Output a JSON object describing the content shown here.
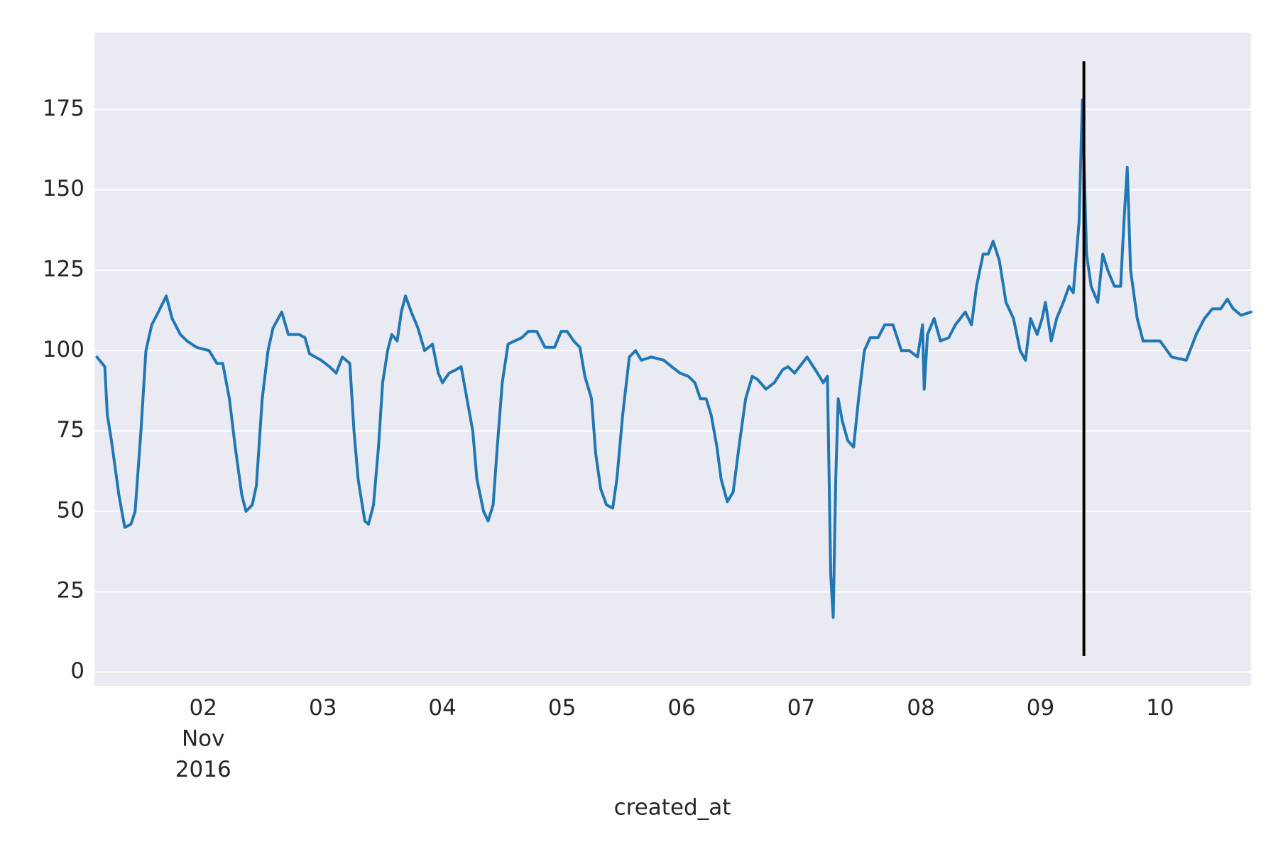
{
  "chart_data": {
    "type": "line",
    "xlabel": "created_at",
    "color": "#1f77b4",
    "grid": true,
    "xlim": [
      "2016-11-01T02:10",
      "2016-11-10T18:15"
    ],
    "ylim": [
      -4.3,
      198.9
    ],
    "yticks": [
      0,
      25,
      50,
      75,
      100,
      125,
      150,
      175
    ],
    "xticks": [
      {
        "value": "2016-11-02T00:00",
        "label": "02\nNov\n2016"
      },
      {
        "value": "2016-11-03T00:00",
        "label": "03"
      },
      {
        "value": "2016-11-04T00:00",
        "label": "04"
      },
      {
        "value": "2016-11-05T00:00",
        "label": "05"
      },
      {
        "value": "2016-11-06T00:00",
        "label": "06"
      },
      {
        "value": "2016-11-07T00:00",
        "label": "07"
      },
      {
        "value": "2016-11-08T00:00",
        "label": "08"
      },
      {
        "value": "2016-11-09T00:00",
        "label": "09"
      },
      {
        "value": "2016-11-10T00:00",
        "label": "10"
      }
    ],
    "vlines": [
      {
        "x": "2016-11-09T08:43",
        "ymin": 5,
        "ymax": 190,
        "color": "#000000"
      }
    ],
    "x": [
      "2016-11-01T02:40",
      "2016-11-01T04:15",
      "2016-11-01T04:45",
      "2016-11-01T05:35",
      "2016-11-01T07:05",
      "2016-11-01T08:15",
      "2016-11-01T09:30",
      "2016-11-01T10:20",
      "2016-11-01T11:30",
      "2016-11-01T12:30",
      "2016-11-01T13:40",
      "2016-11-01T15:00",
      "2016-11-01T16:35",
      "2016-11-01T17:45",
      "2016-11-01T19:25",
      "2016-11-01T20:45",
      "2016-11-01T22:40",
      "2016-11-02T01:10",
      "2016-11-02T02:45",
      "2016-11-02T03:55",
      "2016-11-02T05:15",
      "2016-11-02T06:25",
      "2016-11-02T07:45",
      "2016-11-02T08:35",
      "2016-11-02T09:50",
      "2016-11-02T10:40",
      "2016-11-02T11:50",
      "2016-11-02T13:00",
      "2016-11-02T14:00",
      "2016-11-02T15:45",
      "2016-11-02T17:05",
      "2016-11-02T19:15",
      "2016-11-02T20:25",
      "2016-11-02T21:20",
      "2016-11-02T23:40",
      "2016-11-03T01:20",
      "2016-11-03T02:40",
      "2016-11-03T03:55",
      "2016-11-03T05:25",
      "2016-11-03T06:15",
      "2016-11-03T07:05",
      "2016-11-03T08:25",
      "2016-11-03T09:10",
      "2016-11-03T10:10",
      "2016-11-03T11:10",
      "2016-11-03T12:00",
      "2016-11-03T13:00",
      "2016-11-03T13:50",
      "2016-11-03T14:55",
      "2016-11-03T15:45",
      "2016-11-03T16:35",
      "2016-11-03T17:45",
      "2016-11-03T19:05",
      "2016-11-03T20:25",
      "2016-11-03T22:00",
      "2016-11-03T23:10",
      "2016-11-04T00:00",
      "2016-11-04T01:20",
      "2016-11-04T02:40",
      "2016-11-04T03:45",
      "2016-11-04T04:55",
      "2016-11-04T06:05",
      "2016-11-04T06:55",
      "2016-11-04T08:15",
      "2016-11-04T09:10",
      "2016-11-04T10:10",
      "2016-11-04T11:00",
      "2016-11-04T12:00",
      "2016-11-04T13:10",
      "2016-11-04T14:30",
      "2016-11-04T15:55",
      "2016-11-04T17:15",
      "2016-11-04T18:55",
      "2016-11-04T20:35",
      "2016-11-04T22:30",
      "2016-11-04T23:50",
      "2016-11-05T01:00",
      "2016-11-05T02:20",
      "2016-11-05T03:35",
      "2016-11-05T04:35",
      "2016-11-05T05:55",
      "2016-11-05T06:45",
      "2016-11-05T07:45",
      "2016-11-05T08:55",
      "2016-11-05T10:10",
      "2016-11-05T11:00",
      "2016-11-05T12:10",
      "2016-11-05T13:30",
      "2016-11-05T14:45",
      "2016-11-05T15:55",
      "2016-11-05T17:55",
      "2016-11-05T20:25",
      "2016-11-05T22:00",
      "2016-11-05T23:40",
      "2016-11-06T01:20",
      "2016-11-06T02:40",
      "2016-11-06T03:45",
      "2016-11-06T04:55",
      "2016-11-06T05:55",
      "2016-11-06T07:05",
      "2016-11-06T07:55",
      "2016-11-06T09:10",
      "2016-11-06T10:20",
      "2016-11-06T11:30",
      "2016-11-06T12:50",
      "2016-11-06T14:10",
      "2016-11-06T15:15",
      "2016-11-06T16:55",
      "2016-11-06T18:35",
      "2016-11-06T20:15",
      "2016-11-06T21:20",
      "2016-11-06T22:40",
      "2016-11-07T01:10",
      "2016-11-07T02:00",
      "2016-11-07T03:15",
      "2016-11-07T04:25",
      "2016-11-07T05:15",
      "2016-11-07T05:55",
      "2016-11-07T06:25",
      "2016-11-07T06:55",
      "2016-11-07T07:25",
      "2016-11-07T08:15",
      "2016-11-07T09:20",
      "2016-11-07T10:30",
      "2016-11-07T11:30",
      "2016-11-07T12:40",
      "2016-11-07T13:50",
      "2016-11-07T15:25",
      "2016-11-07T16:45",
      "2016-11-07T18:25",
      "2016-11-07T20:05",
      "2016-11-07T21:40",
      "2016-11-07T23:20",
      "2016-11-08T00:20",
      "2016-11-08T00:40",
      "2016-11-08T01:20",
      "2016-11-08T02:40",
      "2016-11-08T03:55",
      "2016-11-08T05:35",
      "2016-11-08T06:55",
      "2016-11-08T08:55",
      "2016-11-08T10:10",
      "2016-11-08T11:10",
      "2016-11-08T12:30",
      "2016-11-08T13:30",
      "2016-11-08T14:30",
      "2016-11-08T15:45",
      "2016-11-08T17:05",
      "2016-11-08T18:35",
      "2016-11-08T19:55",
      "2016-11-08T21:00",
      "2016-11-08T22:00",
      "2016-11-08T23:20",
      "2016-11-09T00:20",
      "2016-11-09T01:00",
      "2016-11-09T02:10",
      "2016-11-09T03:15",
      "2016-11-09T04:35",
      "2016-11-09T05:45",
      "2016-11-09T06:35",
      "2016-11-09T07:45",
      "2016-11-09T08:25",
      "2016-11-09T09:15",
      "2016-11-09T10:10",
      "2016-11-09T11:30",
      "2016-11-09T12:30",
      "2016-11-09T13:30",
      "2016-11-09T14:50",
      "2016-11-09T16:05",
      "2016-11-09T16:45",
      "2016-11-09T17:25",
      "2016-11-09T18:05",
      "2016-11-09T19:25",
      "2016-11-09T20:35",
      "2016-11-09T22:10",
      "2016-11-10T00:00",
      "2016-11-10T02:20",
      "2016-11-10T05:15",
      "2016-11-10T07:15",
      "2016-11-10T08:55",
      "2016-11-10T10:30",
      "2016-11-10T12:10",
      "2016-11-10T13:30",
      "2016-11-10T14:40",
      "2016-11-10T16:15",
      "2016-11-10T18:15"
    ],
    "values": [
      98,
      95,
      80,
      72,
      55,
      45,
      46,
      50,
      75,
      100,
      108,
      112,
      117,
      110,
      105,
      103,
      101,
      100,
      96,
      96,
      85,
      70,
      55,
      50,
      52,
      58,
      85,
      100,
      107,
      112,
      105,
      105,
      104,
      99,
      97,
      95,
      93,
      98,
      96,
      75,
      60,
      47,
      46,
      52,
      70,
      90,
      100,
      105,
      103,
      112,
      117,
      112,
      107,
      100,
      102,
      93,
      90,
      93,
      94,
      95,
      85,
      75,
      60,
      50,
      47,
      52,
      70,
      90,
      102,
      103,
      104,
      106,
      106,
      101,
      101,
      106,
      106,
      103,
      101,
      92,
      85,
      68,
      57,
      52,
      51,
      60,
      80,
      98,
      100,
      97,
      98,
      97,
      95,
      93,
      92,
      90,
      85,
      85,
      80,
      70,
      60,
      53,
      56,
      70,
      85,
      92,
      91,
      88,
      90,
      94,
      95,
      93,
      98,
      96,
      93,
      90,
      92,
      30,
      17,
      60,
      85,
      78,
      72,
      70,
      85,
      100,
      104,
      104,
      108,
      108,
      100,
      100,
      98,
      108,
      88,
      105,
      110,
      103,
      104,
      108,
      112,
      108,
      120,
      130,
      130,
      134,
      128,
      115,
      110,
      100,
      97,
      110,
      105,
      110,
      115,
      103,
      110,
      115,
      120,
      118,
      140,
      178,
      130,
      120,
      115,
      130,
      125,
      120,
      120,
      140,
      157,
      125,
      110,
      103,
      103,
      103,
      98,
      97,
      105,
      110,
      113,
      113,
      116,
      113,
      111,
      112
    ]
  }
}
